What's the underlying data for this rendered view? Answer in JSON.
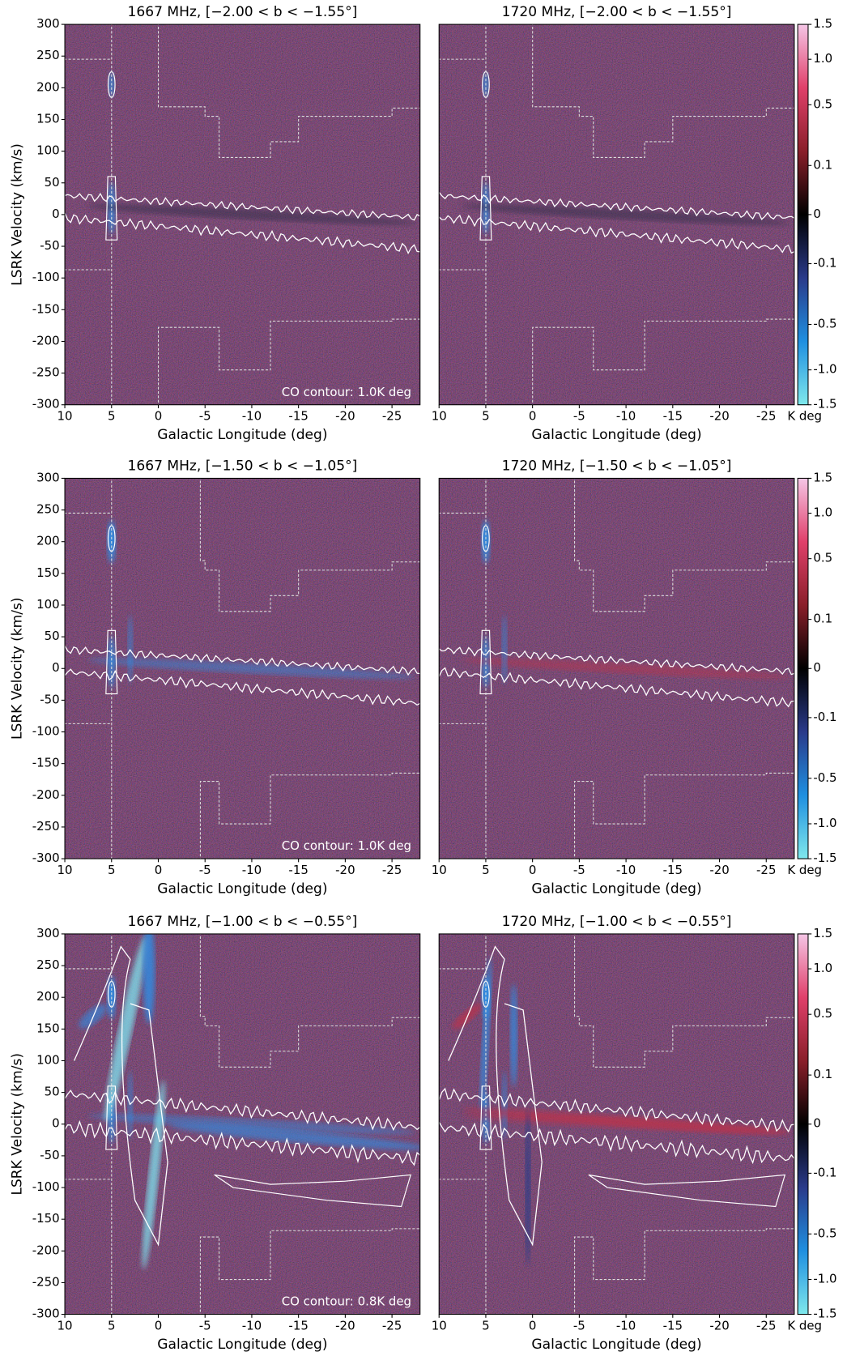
{
  "chart_data": [
    {
      "type": "heatmap",
      "title": "1667 MHz, [−2.00 < b < −1.55°]",
      "xlabel": "Galactic Longitude (deg)",
      "ylabel": "LSRK Velocity (km/s)",
      "annotation": "CO contour: 1.0K deg",
      "xlim": [
        10,
        -28
      ],
      "ylim": [
        -300,
        300
      ],
      "xticks": [
        10,
        5,
        0,
        -5,
        -10,
        -15,
        -20,
        -25
      ],
      "yticks": [
        -300,
        -250,
        -200,
        -150,
        -100,
        -50,
        0,
        50,
        100,
        150,
        200,
        250,
        300
      ]
    },
    {
      "type": "heatmap",
      "title": "1720 MHz, [−2.00 < b < −1.55°]",
      "xlabel": "Galactic Longitude (deg)",
      "xlim": [
        10,
        -28
      ],
      "ylim": [
        -300,
        300
      ],
      "xticks": [
        10,
        5,
        0,
        -5,
        -10,
        -15,
        -20,
        -25
      ],
      "colorbar": {
        "label": "K deg",
        "scale": "sqrt",
        "lim": [
          -1.5,
          1.5
        ],
        "colors": [
          "#7fe8ec",
          "#1f8fe0",
          "#2a3a8a",
          "#000000",
          "#8a1f2a",
          "#e0406a",
          "#f5c6e6"
        ],
        "ticks": [
          1.5,
          {
            "value": 1,
            "label": "1.0"
          },
          0.5,
          0.1,
          0,
          -0.1,
          -0.5,
          {
            "value": -1,
            "label": "-1.0"
          },
          -1.5
        ]
      }
    },
    {
      "type": "heatmap",
      "title": "1667 MHz, [−1.50 < b < −1.05°]",
      "xlabel": "Galactic Longitude (deg)",
      "ylabel": "LSRK Velocity (km/s)",
      "annotation": "CO contour: 1.0K deg",
      "xlim": [
        10,
        -28
      ],
      "ylim": [
        -300,
        300
      ],
      "xticks": [
        10,
        5,
        0,
        -5,
        -10,
        -15,
        -20,
        -25
      ],
      "yticks": [
        -300,
        -250,
        -200,
        -150,
        -100,
        -50,
        0,
        50,
        100,
        150,
        200,
        250,
        300
      ]
    },
    {
      "type": "heatmap",
      "title": "1720 MHz, [−1.50 < b < −1.05°]",
      "xlabel": "Galactic Longitude (deg)",
      "xlim": [
        10,
        -28
      ],
      "ylim": [
        -300,
        300
      ],
      "xticks": [
        10,
        5,
        0,
        -5,
        -10,
        -15,
        -20,
        -25
      ],
      "colorbar": {
        "label": "K deg",
        "scale": "sqrt",
        "lim": [
          -1.5,
          1.5
        ],
        "colors": [
          "#7fe8ec",
          "#1f8fe0",
          "#2a3a8a",
          "#000000",
          "#8a1f2a",
          "#e0406a",
          "#f5c6e6"
        ],
        "ticks": [
          1.5,
          {
            "value": 1,
            "label": "1.0"
          },
          0.5,
          0.1,
          0,
          -0.1,
          -0.5,
          {
            "value": -1,
            "label": "-1.0"
          },
          -1.5
        ]
      }
    },
    {
      "type": "heatmap",
      "title": "1667 MHz, [−1.00 < b < −0.55°]",
      "xlabel": "Galactic Longitude (deg)",
      "ylabel": "LSRK Velocity (km/s)",
      "annotation": "CO contour: 0.8K deg",
      "xlim": [
        10,
        -28
      ],
      "ylim": [
        -300,
        300
      ],
      "xticks": [
        10,
        5,
        0,
        -5,
        -10,
        -15,
        -20,
        -25
      ],
      "yticks": [
        -300,
        -250,
        -200,
        -150,
        -100,
        -50,
        0,
        50,
        100,
        150,
        200,
        250,
        300
      ]
    },
    {
      "type": "heatmap",
      "title": "1720 MHz, [−1.00 < b < −0.55°]",
      "xlabel": "Galactic Longitude (deg)",
      "xlim": [
        10,
        -28
      ],
      "ylim": [
        -300,
        300
      ],
      "xticks": [
        10,
        5,
        0,
        -5,
        -10,
        -15,
        -20,
        -25
      ],
      "colorbar": {
        "label": "K deg",
        "scale": "sqrt",
        "lim": [
          -1.5,
          1.5
        ],
        "colors": [
          "#7fe8ec",
          "#1f8fe0",
          "#2a3a8a",
          "#000000",
          "#8a1f2a",
          "#e0406a",
          "#f5c6e6"
        ],
        "ticks": [
          1.5,
          {
            "value": 1,
            "label": "1.0"
          },
          0.5,
          0.1,
          0,
          -0.1,
          -0.5,
          {
            "value": -1,
            "label": "-1.0"
          },
          -1.5
        ]
      }
    }
  ]
}
